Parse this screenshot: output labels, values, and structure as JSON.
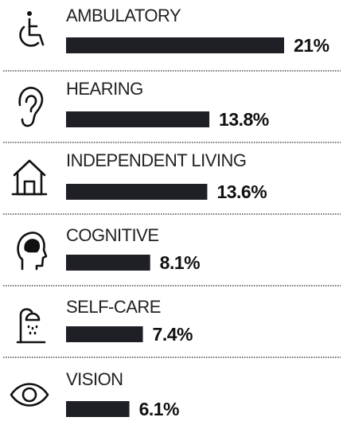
{
  "chart_data": {
    "type": "bar",
    "categories": [
      "AMBULATORY",
      "HEARING",
      "INDEPENDENT LIVING",
      "COGNITIVE",
      "SELF-CARE",
      "VISION"
    ],
    "values": [
      21,
      13.8,
      13.6,
      8.1,
      7.4,
      6.1
    ],
    "value_labels": [
      "21%",
      "13.8%",
      "13.6%",
      "8.1%",
      "7.4%",
      "6.1%"
    ],
    "color": "#1f1f26"
  }
}
